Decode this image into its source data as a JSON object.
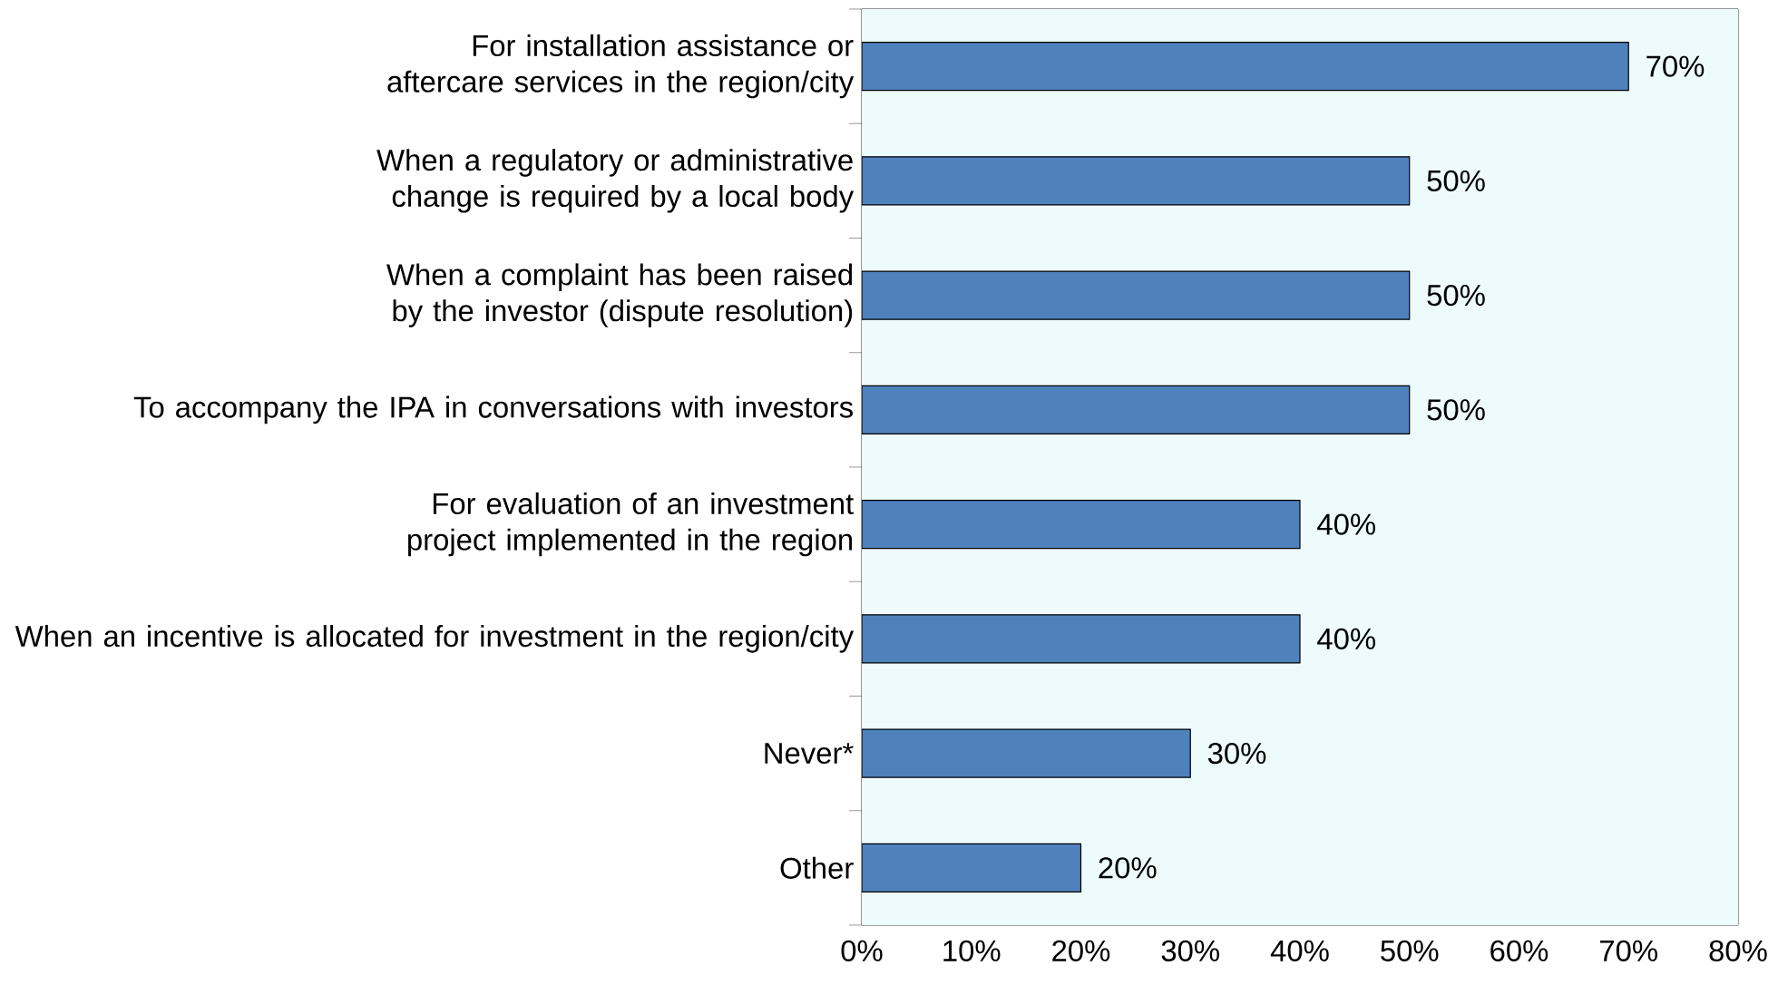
{
  "chart_data": {
    "type": "bar",
    "orientation": "horizontal",
    "categories": [
      "For installation assistance or aftercare services in the region/city",
      "When a regulatory or administrative change is required by a local body",
      "When a complaint has been raised by the investor (dispute resolution)",
      "To accompany the IPA in conversations with investors",
      "For evaluation of an investment project implemented in the region",
      "When an incentive is allocated for investment in the region/city",
      "Never*",
      "Other"
    ],
    "values": [
      70,
      50,
      50,
      50,
      40,
      40,
      30,
      20
    ],
    "value_labels": [
      "70%",
      "50%",
      "50%",
      "50%",
      "40%",
      "40%",
      "30%",
      "20%"
    ],
    "color": "#4f81bd",
    "xlim": [
      0,
      80
    ],
    "xticks": [
      {
        "value": 0,
        "label": "0%"
      },
      {
        "value": 10,
        "label": "10%"
      },
      {
        "value": 20,
        "label": "20%"
      },
      {
        "value": 30,
        "label": "30%"
      },
      {
        "value": 40,
        "label": "40%"
      },
      {
        "value": 50,
        "label": "50%"
      },
      {
        "value": 60,
        "label": "60%"
      },
      {
        "value": 70,
        "label": "70%"
      },
      {
        "value": 80,
        "label": "80%"
      }
    ],
    "grid": false
  }
}
